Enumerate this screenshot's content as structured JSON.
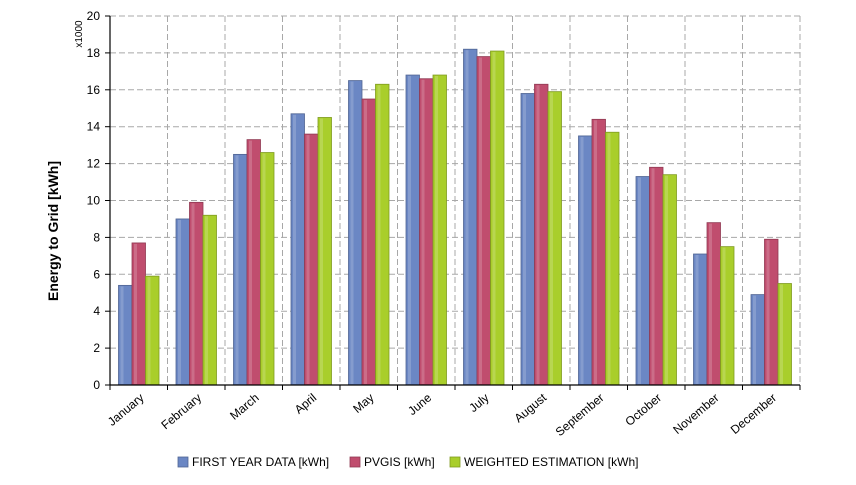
{
  "chart_data": {
    "type": "bar",
    "ylabel": "Energy to Grid [kWh]",
    "y_multiplier_label": "x1000",
    "ylim": [
      0,
      20
    ],
    "yticks": [
      0,
      2,
      4,
      6,
      8,
      10,
      12,
      14,
      16,
      18,
      20
    ],
    "grid": true,
    "legend_position": "bottom",
    "categories": [
      "January",
      "February",
      "March",
      "April",
      "May",
      "June",
      "July",
      "August",
      "September",
      "October",
      "November",
      "December"
    ],
    "series": [
      {
        "name": "FIRST YEAR DATA [kWh]",
        "color": "#6b87c4",
        "values": [
          5.4,
          9.0,
          12.5,
          14.7,
          16.5,
          16.8,
          18.2,
          15.8,
          13.5,
          11.3,
          7.1,
          4.9
        ]
      },
      {
        "name": "PVGIS [kWh]",
        "color": "#c04d6e",
        "values": [
          7.7,
          9.9,
          13.3,
          13.6,
          15.5,
          16.6,
          17.8,
          16.3,
          14.4,
          11.8,
          8.8,
          7.9
        ]
      },
      {
        "name": "WEIGHTED ESTIMATION [kWh]",
        "color": "#a9ce2b",
        "values": [
          5.9,
          9.2,
          12.6,
          14.5,
          16.3,
          16.8,
          18.1,
          15.9,
          13.7,
          11.4,
          7.5,
          5.5
        ]
      }
    ]
  }
}
